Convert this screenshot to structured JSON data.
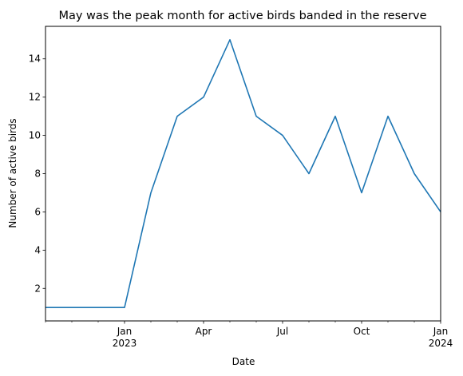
{
  "chart_data": {
    "type": "line",
    "title": "May was the peak month for active birds banded in the reserve",
    "xlabel": "Date",
    "ylabel": "Number of active birds",
    "x": [
      "2022-10",
      "2022-11",
      "2022-12",
      "2023-01",
      "2023-02",
      "2023-03",
      "2023-04",
      "2023-05",
      "2023-06",
      "2023-07",
      "2023-08",
      "2023-09",
      "2023-10",
      "2023-11",
      "2023-12",
      "2024-01"
    ],
    "series": [
      {
        "values": [
          1,
          1,
          1,
          1,
          7,
          11,
          12,
          15,
          11,
          10,
          8,
          11,
          7,
          11,
          8,
          6
        ],
        "color": "#1f77b4"
      }
    ],
    "xlim": [
      "2022-10",
      "2024-01"
    ],
    "ylim": [
      0.3,
      15.7
    ],
    "yticks": [
      2,
      4,
      6,
      8,
      10,
      12,
      14
    ],
    "ytick_labels": [
      "2",
      "4",
      "6",
      "8",
      "10",
      "12",
      "14"
    ],
    "xticks_major": [
      {
        "date": "2023-01",
        "label": "Jan",
        "sublabel": "2023"
      },
      {
        "date": "2023-04",
        "label": "Apr",
        "sublabel": ""
      },
      {
        "date": "2023-07",
        "label": "Jul",
        "sublabel": ""
      },
      {
        "date": "2023-10",
        "label": "Oct",
        "sublabel": ""
      },
      {
        "date": "2024-01",
        "label": "Jan",
        "sublabel": "2024"
      }
    ],
    "xticks_minor": [
      "2022-10",
      "2022-11",
      "2022-12",
      "2023-02",
      "2023-03",
      "2023-05",
      "2023-06",
      "2023-08",
      "2023-09",
      "2023-11",
      "2023-12"
    ],
    "grid": false,
    "legend": false
  }
}
